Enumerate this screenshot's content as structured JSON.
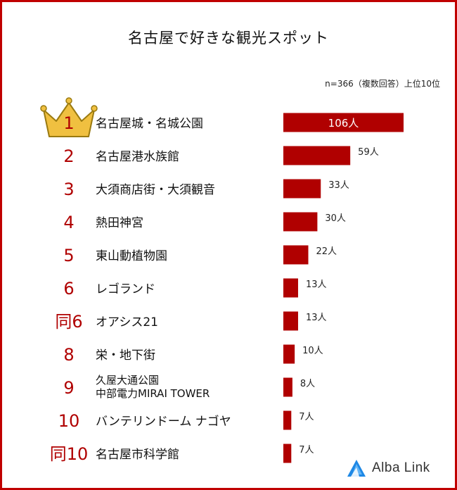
{
  "title": "名古屋で好きな観光スポット",
  "note": "n=366（複数回答）上位10位",
  "logo": {
    "text": "Alba Link",
    "icon": "alba-link-triangle-icon"
  },
  "colors": {
    "bar": "#b00000",
    "rank": "#b00000",
    "crown": "#f0c040",
    "crown_stroke": "#9a7a10",
    "border": "#c00000"
  },
  "chart_data": {
    "type": "bar",
    "orientation": "horizontal",
    "value_suffix": "人",
    "categories": [
      "名古屋城・名城公園",
      "名古屋港水族館",
      "大須商店街・大須観音",
      "熱田神宮",
      "東山動植物園",
      "レゴランド",
      "オアシス21",
      "栄・地下街",
      "久屋大通公園\n中部電力MIRAI TOWER",
      "バンテリンドーム ナゴヤ",
      "名古屋市科学館"
    ],
    "ranks": [
      "1",
      "2",
      "3",
      "4",
      "5",
      "6",
      "同6",
      "8",
      "9",
      "10",
      "同10"
    ],
    "values": [
      106,
      59,
      33,
      30,
      22,
      13,
      13,
      10,
      8,
      7,
      7
    ],
    "value_labels": [
      "106人",
      "59人",
      "33人",
      "30人",
      "22人",
      "13人",
      "13人",
      "10人",
      "8人",
      "7人",
      "7人"
    ],
    "xlim": [
      0,
      106
    ]
  }
}
